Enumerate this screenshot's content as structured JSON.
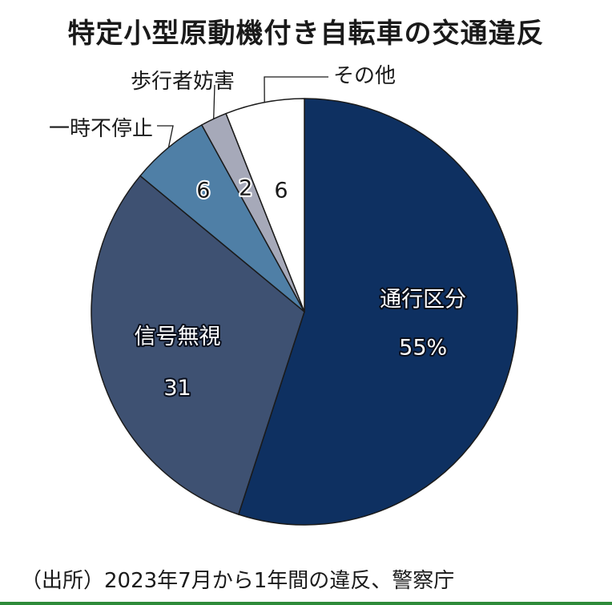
{
  "header": {
    "title": "特定小型原動機付き自転車の交通違反"
  },
  "footer": {
    "source": "（出所）2023年7月から1年間の違反、警察庁"
  },
  "colors": {
    "slice_1": "#0e3061",
    "slice_2": "#3e5172",
    "slice_3": "#4f7fa6",
    "slice_4": "#a6a9b9",
    "slice_5": "#ffffff",
    "outline": "#1a1a1a",
    "accent_rule": "#2e8b3a"
  },
  "chart_data": {
    "type": "pie",
    "categories": [
      "通行区分",
      "信号無視",
      "一時不停止",
      "歩行者妨害",
      "その他"
    ],
    "values": [
      55,
      31,
      6,
      2,
      6
    ],
    "value_labels": [
      "55%",
      "31",
      "6",
      "2",
      "6"
    ],
    "unit": "%",
    "title": "特定小型原動機付き自転車の交通違反",
    "start": "12 o'clock",
    "direction": "clockwise",
    "legend": "none"
  }
}
